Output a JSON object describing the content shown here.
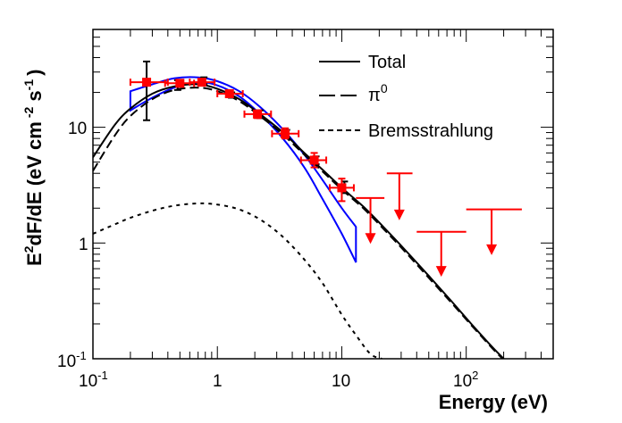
{
  "chart_data": {
    "type": "line",
    "title": "",
    "xlabel": "Energy (eV)",
    "ylabel": "E²dF/dE (eV cm⁻² s⁻¹)",
    "ylabel_parts": {
      "e": "E",
      "e_sup": "2",
      "main": "dF/dE (eV cm",
      "cm_sup": "-2",
      "s": " s",
      "s_sup": "-1",
      "close": ")"
    },
    "xscale": "log",
    "yscale": "log",
    "xlim": [
      0.1,
      500
    ],
    "ylim": [
      0.1,
      70
    ],
    "grid": false,
    "x_ticks": [
      {
        "value": 0.1,
        "base": "10",
        "exp": "-1"
      },
      {
        "value": 1,
        "base": "1",
        "exp": ""
      },
      {
        "value": 10,
        "base": "10",
        "exp": ""
      },
      {
        "value": 100,
        "base": "10",
        "exp": "2"
      }
    ],
    "y_ticks": [
      {
        "value": 0.1,
        "base": "10",
        "exp": "-1"
      },
      {
        "value": 1,
        "base": "1",
        "exp": ""
      },
      {
        "value": 10,
        "base": "10",
        "exp": ""
      }
    ],
    "legend": {
      "position": "top-right",
      "entries": [
        {
          "label": "Total",
          "style": "solid"
        },
        {
          "label": "π",
          "sup": "0",
          "style": "dashed"
        },
        {
          "label": "Bremsstrahlung",
          "style": "dotted"
        }
      ]
    },
    "series": [
      {
        "name": "Total",
        "style": "solid",
        "color": "#000000",
        "x": [
          0.1,
          0.15,
          0.2,
          0.3,
          0.45,
          0.7,
          1.0,
          1.5,
          2.2,
          3.3,
          5,
          7,
          10,
          15,
          22,
          33,
          50,
          75,
          110,
          160,
          200
        ],
        "y": [
          5.5,
          10.5,
          14.5,
          19.5,
          22.5,
          23.5,
          21.5,
          17.5,
          13,
          9.2,
          6.0,
          4.3,
          3.0,
          2.05,
          1.35,
          0.85,
          0.52,
          0.32,
          0.2,
          0.128,
          0.1
        ]
      },
      {
        "name": "π0",
        "style": "dashed",
        "color": "#000000",
        "x": [
          0.1,
          0.15,
          0.2,
          0.3,
          0.45,
          0.7,
          1.0,
          1.5,
          2.2,
          3.3,
          5,
          7,
          10,
          15,
          22,
          33,
          50,
          75,
          110,
          160,
          200
        ],
        "y": [
          4.2,
          8.5,
          12.5,
          17.5,
          21,
          22,
          20.5,
          16.8,
          12.5,
          8.8,
          5.8,
          4.15,
          2.9,
          1.98,
          1.3,
          0.82,
          0.5,
          0.31,
          0.195,
          0.125,
          0.098
        ]
      },
      {
        "name": "Bremsstrahlung",
        "style": "dotted",
        "color": "#000000",
        "x": [
          0.1,
          0.15,
          0.2,
          0.3,
          0.45,
          0.7,
          1.0,
          1.5,
          2.2,
          3.3,
          5,
          7,
          10,
          13,
          17,
          21
        ],
        "y": [
          1.2,
          1.45,
          1.65,
          1.9,
          2.1,
          2.2,
          2.15,
          1.95,
          1.6,
          1.15,
          0.72,
          0.45,
          0.24,
          0.16,
          0.11,
          0.1
        ]
      }
    ],
    "band": {
      "name": "fit-band",
      "color": "#0000ff",
      "upper": {
        "x": [
          0.2,
          0.3,
          0.45,
          0.7,
          1.0,
          1.5,
          2.2,
          3.3,
          5,
          7,
          10,
          13
        ],
        "y": [
          20.5,
          23.5,
          26.5,
          27,
          25,
          20.5,
          15,
          9.8,
          5.8,
          3.5,
          2.0,
          1.38
        ]
      },
      "lower": {
        "x": [
          0.2,
          0.3,
          0.45,
          0.7,
          1.0,
          1.5,
          2.2,
          3.3,
          5,
          7,
          10,
          13
        ],
        "y": [
          14,
          18,
          22,
          24.5,
          23,
          18.5,
          13,
          8.2,
          4.5,
          2.4,
          1.2,
          0.68
        ]
      }
    },
    "points_red": [
      {
        "x": 0.27,
        "y": 24.5,
        "xlo": 0.2,
        "xhi": 0.4,
        "ylo": 24.5,
        "yhi": 24.5
      },
      {
        "x": 0.5,
        "y": 24,
        "xlo": 0.38,
        "xhi": 0.65,
        "ylo": 24,
        "yhi": 24
      },
      {
        "x": 0.75,
        "y": 24.5,
        "xlo": 0.6,
        "xhi": 0.95,
        "ylo": 24.5,
        "yhi": 24.5
      },
      {
        "x": 1.25,
        "y": 19.5,
        "xlo": 1.0,
        "xhi": 1.6,
        "ylo": 18.5,
        "yhi": 20.5
      },
      {
        "x": 2.1,
        "y": 13,
        "xlo": 1.65,
        "xhi": 2.7,
        "ylo": 12,
        "yhi": 14
      },
      {
        "x": 3.5,
        "y": 8.8,
        "xlo": 2.75,
        "xhi": 4.5,
        "ylo": 8.0,
        "yhi": 9.8
      },
      {
        "x": 6,
        "y": 5.2,
        "xlo": 4.7,
        "xhi": 7.5,
        "ylo": 4.5,
        "yhi": 6.0
      },
      {
        "x": 10,
        "y": 3.0,
        "xlo": 8,
        "xhi": 12.5,
        "ylo": 2.3,
        "yhi": 3.6
      }
    ],
    "points_black": [
      {
        "x": 0.27,
        "y": 16,
        "ylo": 11.5,
        "yhi": 37
      },
      {
        "x": 0.48,
        "y": 23,
        "ylo": 21,
        "yhi": 25.5
      },
      {
        "x": 0.78,
        "y": 25,
        "ylo": 23.5,
        "yhi": 27
      },
      {
        "x": 1.3,
        "y": 19,
        "ylo": 18,
        "yhi": 20
      },
      {
        "x": 2.2,
        "y": 13,
        "ylo": 12,
        "yhi": 14
      },
      {
        "x": 3.6,
        "y": 8.8,
        "ylo": 8.2,
        "yhi": 9.5
      },
      {
        "x": 6.2,
        "y": 5.2,
        "ylo": 4.8,
        "yhi": 5.6
      },
      {
        "x": 10.5,
        "y": 3.1,
        "ylo": 2.7,
        "yhi": 3.4
      }
    ],
    "upper_limits": [
      {
        "x": 17,
        "xlo": 13,
        "xhi": 22,
        "y": 2.45,
        "arrow_to": 1.0
      },
      {
        "x": 29,
        "xlo": 23,
        "xhi": 37,
        "y": 4.0,
        "arrow_to": 1.6
      },
      {
        "x": 63,
        "xlo": 40,
        "xhi": 100,
        "y": 1.25,
        "arrow_to": 0.52
      },
      {
        "x": 160,
        "xlo": 100,
        "xhi": 280,
        "y": 1.95,
        "arrow_to": 0.8
      }
    ]
  }
}
